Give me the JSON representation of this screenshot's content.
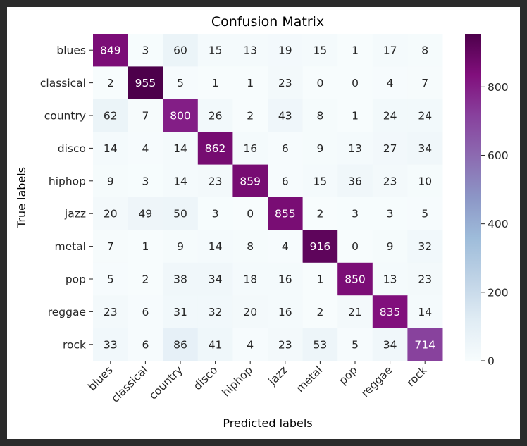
{
  "chart_data": {
    "type": "heatmap",
    "title": "Confusion Matrix",
    "xlabel": "Predicted labels",
    "ylabel": "True labels",
    "x_categories": [
      "blues",
      "classical",
      "country",
      "disco",
      "hiphop",
      "jazz",
      "metal",
      "pop",
      "reggae",
      "rock"
    ],
    "y_categories": [
      "blues",
      "classical",
      "country",
      "disco",
      "hiphop",
      "jazz",
      "metal",
      "pop",
      "reggae",
      "rock"
    ],
    "values": [
      [
        849,
        3,
        60,
        15,
        13,
        19,
        15,
        1,
        17,
        8
      ],
      [
        2,
        955,
        5,
        1,
        1,
        23,
        0,
        0,
        4,
        7
      ],
      [
        62,
        7,
        800,
        26,
        2,
        43,
        8,
        1,
        24,
        24
      ],
      [
        14,
        4,
        14,
        862,
        16,
        6,
        9,
        13,
        27,
        34
      ],
      [
        9,
        3,
        14,
        23,
        859,
        6,
        15,
        36,
        23,
        10
      ],
      [
        20,
        49,
        50,
        3,
        0,
        855,
        2,
        3,
        3,
        5
      ],
      [
        7,
        1,
        9,
        14,
        8,
        4,
        916,
        0,
        9,
        32
      ],
      [
        5,
        2,
        38,
        34,
        18,
        16,
        1,
        850,
        13,
        23
      ],
      [
        23,
        6,
        31,
        32,
        20,
        16,
        2,
        21,
        835,
        14
      ],
      [
        33,
        6,
        86,
        41,
        4,
        23,
        53,
        5,
        34,
        714
      ]
    ],
    "colormap": "BuPu",
    "colorbar_range": [
      0,
      955
    ],
    "colorbar_ticks": [
      0,
      200,
      400,
      600,
      800
    ],
    "grid": false
  }
}
